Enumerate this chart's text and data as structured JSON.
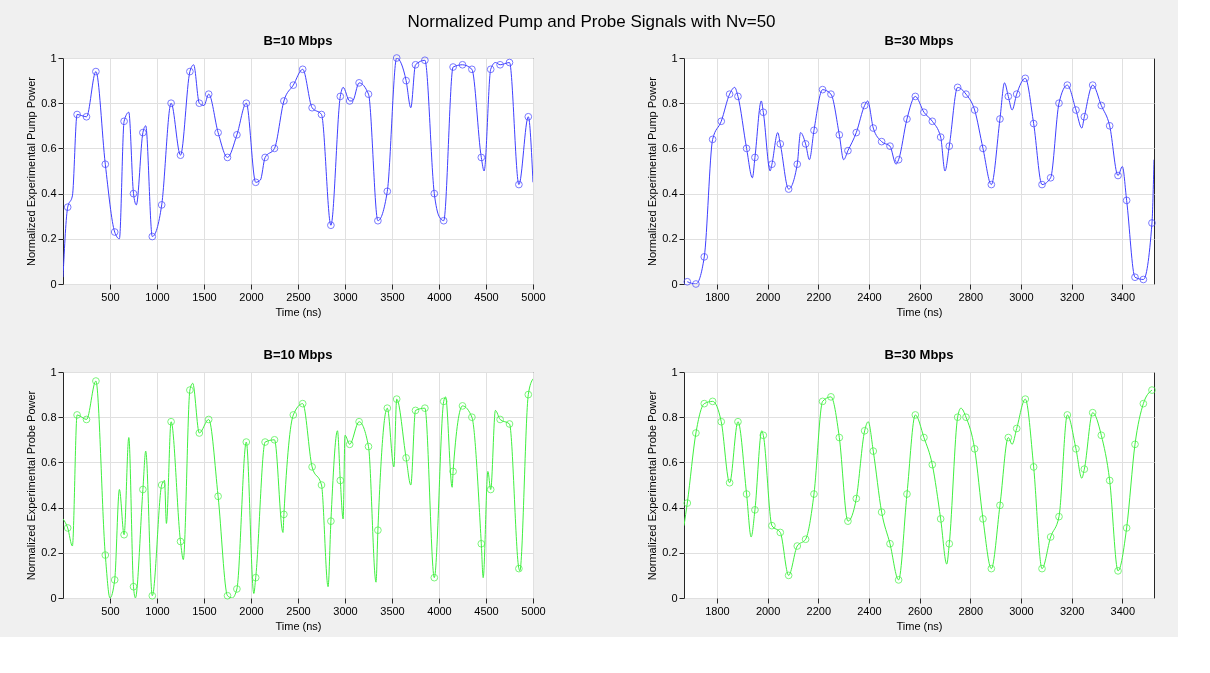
{
  "chart_data": [
    {
      "type": "other",
      "title": "Normalized Pump and Probe Signals with Nv=50"
    },
    {
      "type": "line",
      "title": "B=10 Mbps",
      "xlabel": "Time (ns)",
      "ylabel": "Normalized Experimental Pump Power",
      "xlim": [
        0,
        5000
      ],
      "ylim": [
        0,
        1
      ],
      "xticks": [
        500,
        1000,
        1500,
        2000,
        2500,
        3000,
        3500,
        4000,
        4500,
        5000
      ],
      "yticks": [
        0,
        0.2,
        0.4,
        0.6,
        0.8,
        1
      ],
      "grid": true,
      "series": [
        {
          "type": "line",
          "marker": "none",
          "color": "#4040ff",
          "x": [
            0,
            50,
            100,
            150,
            250,
            350,
            450,
            550,
            600,
            650,
            700,
            750,
            780,
            850,
            880,
            950,
            1050,
            1150,
            1250,
            1350,
            1390,
            1450,
            1500,
            1550,
            1650,
            1750,
            1850,
            1950,
            2050,
            2100,
            2150,
            2250,
            2350,
            2450,
            2550,
            2650,
            2750,
            2850,
            2950,
            2980,
            3050,
            3080,
            3150,
            3250,
            3350,
            3450,
            3550,
            3650,
            3700,
            3750,
            3850,
            3950,
            4000,
            4050,
            4150,
            4250,
            4350,
            4450,
            4480,
            4550,
            4600,
            4650,
            4750,
            4850,
            4950,
            5000
          ],
          "values": [
            0.03,
            0.34,
            0.39,
            0.75,
            0.74,
            0.94,
            0.53,
            0.23,
            0.2,
            0.72,
            0.76,
            0.4,
            0.35,
            0.67,
            0.7,
            0.21,
            0.35,
            0.8,
            0.57,
            0.94,
            0.97,
            0.8,
            0.79,
            0.84,
            0.67,
            0.56,
            0.66,
            0.8,
            0.45,
            0.46,
            0.56,
            0.6,
            0.81,
            0.88,
            0.95,
            0.78,
            0.75,
            0.26,
            0.83,
            0.87,
            0.81,
            0.81,
            0.89,
            0.84,
            0.28,
            0.41,
            1.0,
            0.9,
            0.78,
            0.97,
            0.99,
            0.4,
            0.3,
            0.28,
            0.96,
            0.97,
            0.95,
            0.56,
            0.5,
            0.95,
            0.98,
            0.97,
            0.98,
            0.44,
            0.74,
            0.45
          ]
        },
        {
          "type": "scatter",
          "marker": "circle",
          "color": "#4040ff",
          "x": [
            50,
            150,
            250,
            350,
            450,
            550,
            650,
            750,
            850,
            950,
            1050,
            1150,
            1250,
            1350,
            1450,
            1550,
            1650,
            1750,
            1850,
            1950,
            2050,
            2150,
            2250,
            2350,
            2450,
            2550,
            2650,
            2750,
            2850,
            2950,
            3050,
            3150,
            3250,
            3350,
            3450,
            3550,
            3650,
            3750,
            3850,
            3950,
            4050,
            4150,
            4250,
            4350,
            4450,
            4550,
            4650,
            4750,
            4850,
            4950
          ],
          "values": [
            0.34,
            0.75,
            0.74,
            0.94,
            0.53,
            0.23,
            0.72,
            0.4,
            0.67,
            0.21,
            0.35,
            0.8,
            0.57,
            0.94,
            0.8,
            0.84,
            0.67,
            0.56,
            0.66,
            0.8,
            0.45,
            0.56,
            0.6,
            0.81,
            0.88,
            0.95,
            0.78,
            0.75,
            0.26,
            0.83,
            0.81,
            0.89,
            0.84,
            0.28,
            0.41,
            1.0,
            0.9,
            0.97,
            0.99,
            0.4,
            0.28,
            0.96,
            0.97,
            0.95,
            0.56,
            0.95,
            0.97,
            0.98,
            0.44,
            0.74
          ]
        }
      ]
    },
    {
      "type": "line",
      "title": "B=30 Mbps",
      "xlabel": "Time (ns)",
      "ylabel": "Normalized Experimental Pump Power",
      "xlim": [
        1670,
        3525
      ],
      "ylim": [
        0,
        1
      ],
      "xticks": [
        1800,
        2000,
        2200,
        2400,
        2600,
        2800,
        3000,
        3200,
        3400
      ],
      "yticks": [
        0,
        0.2,
        0.4,
        0.6,
        0.8,
        1
      ],
      "grid": true,
      "series": [
        {
          "type": "line",
          "marker": "none",
          "color": "#4040ff",
          "x": [
            1683,
            1717,
            1750,
            1783,
            1817,
            1850,
            1870,
            1883,
            1917,
            1940,
            1950,
            1975,
            1983,
            2010,
            2017,
            2040,
            2050,
            2083,
            2117,
            2130,
            2150,
            2165,
            2183,
            2217,
            2250,
            2283,
            2300,
            2317,
            2350,
            2383,
            2395,
            2417,
            2450,
            2483,
            2507,
            2517,
            2550,
            2583,
            2617,
            2650,
            2683,
            2700,
            2717,
            2750,
            2783,
            2817,
            2850,
            2883,
            2917,
            2935,
            2950,
            2965,
            2983,
            3017,
            3050,
            3083,
            3117,
            3150,
            3183,
            3217,
            3240,
            3250,
            3283,
            3317,
            3350,
            3383,
            3400,
            3417,
            3450,
            3483,
            3517,
            3525
          ],
          "values": [
            0.01,
            0.0,
            0.12,
            0.64,
            0.72,
            0.84,
            0.87,
            0.83,
            0.6,
            0.47,
            0.56,
            0.81,
            0.76,
            0.5,
            0.53,
            0.67,
            0.62,
            0.42,
            0.53,
            0.67,
            0.62,
            0.55,
            0.68,
            0.86,
            0.84,
            0.66,
            0.55,
            0.59,
            0.67,
            0.79,
            0.81,
            0.69,
            0.63,
            0.61,
            0.53,
            0.55,
            0.73,
            0.83,
            0.76,
            0.72,
            0.65,
            0.5,
            0.61,
            0.87,
            0.84,
            0.77,
            0.6,
            0.44,
            0.73,
            0.89,
            0.83,
            0.77,
            0.84,
            0.91,
            0.71,
            0.44,
            0.47,
            0.8,
            0.88,
            0.77,
            0.69,
            0.74,
            0.88,
            0.79,
            0.7,
            0.48,
            0.52,
            0.37,
            0.03,
            0.02,
            0.27,
            0.55
          ]
        },
        {
          "type": "scatter",
          "marker": "circle",
          "color": "#4040ff",
          "x": [
            1683,
            1717,
            1750,
            1783,
            1817,
            1850,
            1883,
            1917,
            1950,
            1983,
            2017,
            2050,
            2083,
            2117,
            2150,
            2183,
            2217,
            2250,
            2283,
            2317,
            2350,
            2383,
            2417,
            2450,
            2483,
            2517,
            2550,
            2583,
            2617,
            2650,
            2683,
            2717,
            2750,
            2783,
            2817,
            2850,
            2883,
            2917,
            2950,
            2983,
            3017,
            3050,
            3083,
            3117,
            3150,
            3183,
            3217,
            3250,
            3283,
            3317,
            3350,
            3383,
            3417,
            3450,
            3483,
            3517
          ],
          "values": [
            0.01,
            0.0,
            0.12,
            0.64,
            0.72,
            0.84,
            0.83,
            0.6,
            0.56,
            0.76,
            0.53,
            0.62,
            0.42,
            0.53,
            0.62,
            0.68,
            0.86,
            0.84,
            0.66,
            0.59,
            0.67,
            0.79,
            0.69,
            0.63,
            0.61,
            0.55,
            0.73,
            0.83,
            0.76,
            0.72,
            0.65,
            0.61,
            0.87,
            0.84,
            0.77,
            0.6,
            0.44,
            0.73,
            0.83,
            0.84,
            0.91,
            0.71,
            0.44,
            0.47,
            0.8,
            0.88,
            0.77,
            0.74,
            0.88,
            0.79,
            0.7,
            0.48,
            0.37,
            0.03,
            0.02,
            0.27
          ]
        }
      ]
    },
    {
      "type": "line",
      "title": "B=10 Mbps",
      "xlabel": "Time (ns)",
      "ylabel": "Normalized Experimental Probe Power",
      "xlim": [
        0,
        5000
      ],
      "ylim": [
        0,
        1
      ],
      "xticks": [
        500,
        1000,
        1500,
        2000,
        2500,
        3000,
        3500,
        4000,
        4500,
        5000
      ],
      "yticks": [
        0,
        0.2,
        0.4,
        0.6,
        0.8,
        1
      ],
      "grid": true,
      "series": [
        {
          "type": "line",
          "marker": "none",
          "color": "#40f040",
          "x": [
            0,
            50,
            100,
            150,
            250,
            350,
            450,
            500,
            550,
            600,
            650,
            700,
            750,
            770,
            850,
            880,
            950,
            1050,
            1080,
            1100,
            1150,
            1250,
            1280,
            1350,
            1380,
            1450,
            1550,
            1650,
            1750,
            1800,
            1850,
            1950,
            2030,
            2050,
            2150,
            2250,
            2340,
            2350,
            2450,
            2550,
            2650,
            2750,
            2820,
            2850,
            2920,
            2950,
            2980,
            3000,
            3050,
            3150,
            3250,
            3330,
            3350,
            3450,
            3520,
            3550,
            3650,
            3700,
            3750,
            3850,
            3950,
            4050,
            4070,
            4140,
            4150,
            4250,
            4350,
            4450,
            4470,
            4520,
            4550,
            4600,
            4650,
            4750,
            4850,
            4860,
            4950,
            5000
          ],
          "values": [
            0.35,
            0.31,
            0.23,
            0.81,
            0.79,
            0.96,
            0.19,
            0.0,
            0.08,
            0.48,
            0.28,
            0.71,
            0.05,
            0.0,
            0.48,
            0.65,
            0.01,
            0.5,
            0.52,
            0.33,
            0.78,
            0.25,
            0.17,
            0.92,
            0.95,
            0.73,
            0.79,
            0.45,
            0.01,
            0.0,
            0.04,
            0.69,
            0.02,
            0.09,
            0.69,
            0.7,
            0.29,
            0.37,
            0.81,
            0.86,
            0.58,
            0.5,
            0.05,
            0.34,
            0.74,
            0.52,
            0.35,
            0.72,
            0.68,
            0.78,
            0.67,
            0.07,
            0.3,
            0.84,
            0.58,
            0.88,
            0.62,
            0.5,
            0.83,
            0.84,
            0.09,
            0.87,
            0.89,
            0.49,
            0.56,
            0.85,
            0.8,
            0.24,
            0.09,
            0.56,
            0.48,
            0.83,
            0.79,
            0.77,
            0.13,
            0.12,
            0.9,
            0.97
          ]
        },
        {
          "type": "scatter",
          "marker": "circle",
          "color": "#40f040",
          "x": [
            50,
            150,
            250,
            350,
            450,
            550,
            650,
            750,
            850,
            950,
            1050,
            1150,
            1250,
            1350,
            1450,
            1550,
            1650,
            1750,
            1850,
            1950,
            2050,
            2150,
            2250,
            2350,
            2450,
            2550,
            2650,
            2750,
            2850,
            2950,
            3050,
            3150,
            3250,
            3350,
            3450,
            3550,
            3650,
            3750,
            3850,
            3950,
            4050,
            4150,
            4250,
            4350,
            4450,
            4550,
            4650,
            4750,
            4850,
            4950
          ],
          "values": [
            0.31,
            0.81,
            0.79,
            0.96,
            0.19,
            0.08,
            0.28,
            0.05,
            0.48,
            0.01,
            0.5,
            0.78,
            0.25,
            0.92,
            0.73,
            0.79,
            0.45,
            0.01,
            0.04,
            0.69,
            0.09,
            0.69,
            0.7,
            0.37,
            0.81,
            0.86,
            0.58,
            0.5,
            0.34,
            0.52,
            0.68,
            0.78,
            0.67,
            0.3,
            0.84,
            0.88,
            0.62,
            0.83,
            0.84,
            0.09,
            0.87,
            0.56,
            0.85,
            0.8,
            0.24,
            0.48,
            0.79,
            0.77,
            0.13,
            0.9
          ]
        }
      ]
    },
    {
      "type": "line",
      "title": "B=30 Mbps",
      "xlabel": "Time (ns)",
      "ylabel": "Normalized Experimental Probe Power",
      "xlim": [
        1670,
        3525
      ],
      "ylim": [
        0,
        1
      ],
      "xticks": [
        1800,
        2000,
        2200,
        2400,
        2600,
        2800,
        3000,
        3200,
        3400
      ],
      "yticks": [
        0,
        0.2,
        0.4,
        0.6,
        0.8,
        1
      ],
      "grid": true,
      "series": [
        {
          "type": "line",
          "marker": "none",
          "color": "#40f040",
          "x": [
            1670,
            1683,
            1717,
            1750,
            1783,
            1817,
            1850,
            1883,
            1917,
            1935,
            1950,
            1977,
            1983,
            2017,
            2050,
            2083,
            2117,
            2150,
            2183,
            2217,
            2250,
            2283,
            2317,
            2350,
            2383,
            2397,
            2417,
            2450,
            2483,
            2517,
            2550,
            2583,
            2617,
            2650,
            2683,
            2707,
            2717,
            2750,
            2763,
            2783,
            2817,
            2850,
            2883,
            2917,
            2950,
            2965,
            2983,
            3017,
            3050,
            3083,
            3117,
            3150,
            3183,
            3217,
            3240,
            3250,
            3283,
            3317,
            3350,
            3383,
            3417,
            3450,
            3483,
            3517
          ],
          "values": [
            0.32,
            0.42,
            0.73,
            0.86,
            0.87,
            0.78,
            0.51,
            0.78,
            0.46,
            0.27,
            0.39,
            0.74,
            0.72,
            0.32,
            0.29,
            0.1,
            0.23,
            0.26,
            0.46,
            0.87,
            0.89,
            0.71,
            0.34,
            0.44,
            0.74,
            0.78,
            0.65,
            0.38,
            0.24,
            0.08,
            0.46,
            0.81,
            0.71,
            0.59,
            0.35,
            0.15,
            0.24,
            0.8,
            0.84,
            0.8,
            0.66,
            0.35,
            0.13,
            0.41,
            0.71,
            0.68,
            0.75,
            0.88,
            0.58,
            0.13,
            0.27,
            0.36,
            0.81,
            0.66,
            0.53,
            0.57,
            0.82,
            0.72,
            0.52,
            0.12,
            0.31,
            0.68,
            0.86,
            0.92
          ]
        },
        {
          "type": "scatter",
          "marker": "circle",
          "color": "#40f040",
          "x": [
            1683,
            1717,
            1750,
            1783,
            1817,
            1850,
            1883,
            1917,
            1950,
            1983,
            2017,
            2050,
            2083,
            2117,
            2150,
            2183,
            2217,
            2250,
            2283,
            2317,
            2350,
            2383,
            2417,
            2450,
            2483,
            2517,
            2550,
            2583,
            2617,
            2650,
            2683,
            2717,
            2750,
            2783,
            2817,
            2850,
            2883,
            2917,
            2950,
            2983,
            3017,
            3050,
            3083,
            3117,
            3150,
            3183,
            3217,
            3250,
            3283,
            3317,
            3350,
            3383,
            3417,
            3450,
            3483,
            3517
          ],
          "values": [
            0.42,
            0.73,
            0.86,
            0.87,
            0.78,
            0.51,
            0.78,
            0.46,
            0.39,
            0.72,
            0.32,
            0.29,
            0.1,
            0.23,
            0.26,
            0.46,
            0.87,
            0.89,
            0.71,
            0.34,
            0.44,
            0.74,
            0.65,
            0.38,
            0.24,
            0.08,
            0.46,
            0.81,
            0.71,
            0.59,
            0.35,
            0.24,
            0.8,
            0.8,
            0.66,
            0.35,
            0.13,
            0.41,
            0.71,
            0.75,
            0.88,
            0.58,
            0.13,
            0.27,
            0.36,
            0.81,
            0.66,
            0.57,
            0.82,
            0.72,
            0.52,
            0.12,
            0.31,
            0.68,
            0.86,
            0.92
          ]
        }
      ]
    }
  ]
}
